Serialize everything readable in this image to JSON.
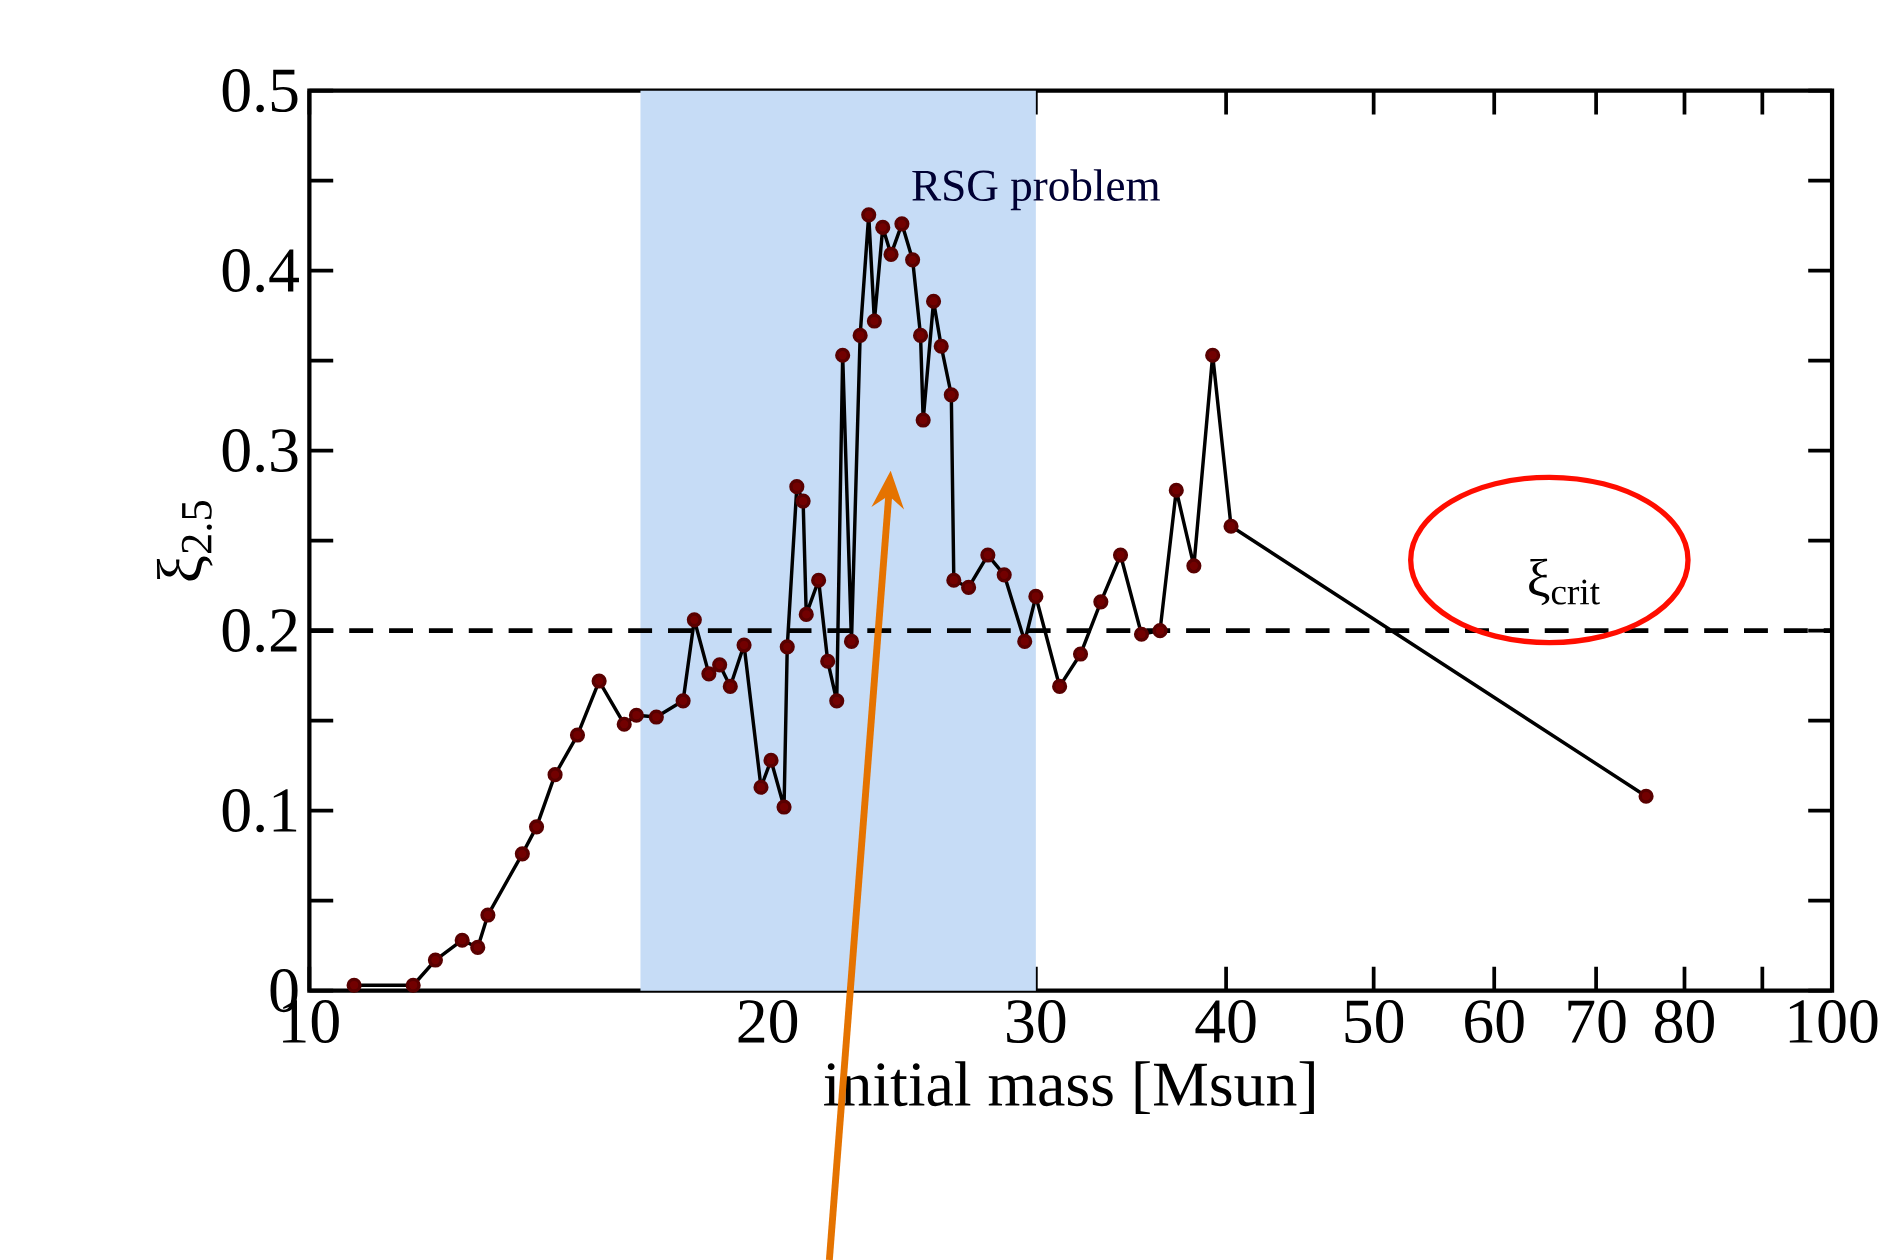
{
  "chart_data": {
    "type": "line",
    "xlabel": "initial mass [Msun]",
    "ylabel": "ξ$_{2.5}$",
    "log": "x",
    "marker": "circle",
    "line_style": "solid",
    "xlim": [
      10,
      100
    ],
    "ylim": [
      0,
      0.5
    ],
    "xticks": [
      10,
      20,
      30,
      40,
      50,
      60,
      70,
      80,
      {
        "value": 90,
        "label": null
      },
      100
    ],
    "yticks": [
      0,
      {
        "value": 0.05,
        "label": null
      },
      0.1,
      {
        "value": 0.15,
        "label": null
      },
      0.2,
      {
        "value": 0.25,
        "label": null
      },
      0.3,
      {
        "value": 0.35,
        "label": null
      },
      0.4,
      {
        "value": 0.45,
        "label": null
      },
      0.5
    ],
    "series": [
      {
        "color": "#000000",
        "x": [
          10.7,
          11.7,
          12.1,
          12.6,
          12.9,
          13.1,
          13.8,
          14.1,
          14.5,
          15.0,
          15.5,
          16.1,
          16.4,
          16.9,
          17.6,
          17.9,
          18.3,
          18.6,
          18.9,
          19.3,
          19.8,
          20.1,
          20.5,
          20.6,
          20.9,
          21.1,
          21.2,
          21.6,
          21.9,
          22.2,
          22.4,
          22.7,
          23.0,
          23.3,
          23.5,
          23.8,
          24.1,
          24.5,
          24.9,
          25.2,
          25.3,
          25.7,
          26.0,
          26.4,
          26.5,
          27.1,
          27.9,
          28.6,
          29.5,
          30.0,
          31.1,
          32.1,
          33.1,
          34.1,
          35.2,
          36.2,
          37.1,
          38.1,
          39.2,
          40.3,
          75.5
        ],
        "values": [
          0.003,
          0.003,
          0.017,
          0.028,
          0.024,
          0.042,
          0.076,
          0.091,
          0.12,
          0.142,
          0.172,
          0.148,
          0.153,
          0.152,
          0.161,
          0.206,
          0.176,
          0.181,
          0.169,
          0.192,
          0.113,
          0.128,
          0.102,
          0.191,
          0.28,
          0.272,
          0.209,
          0.228,
          0.183,
          0.161,
          0.353,
          0.194,
          0.364,
          0.431,
          0.372,
          0.424,
          0.409,
          0.426,
          0.406,
          0.364,
          0.317,
          0.383,
          0.358,
          0.331,
          0.228,
          0.224,
          0.242,
          0.231,
          0.194,
          0.219,
          0.169,
          0.187,
          0.216,
          0.242,
          0.198,
          0.2,
          0.278,
          0.236,
          0.353,
          0.258,
          0.108
        ]
      }
    ],
    "bands": [
      {
        "axis": "x",
        "from": 16.5,
        "to": 30,
        "color": "#c6dcf6"
      }
    ],
    "ref_lines": [
      {
        "axis": "y",
        "value": 0.2,
        "label": "ξ$_{crit}$",
        "line_style": "dashed"
      }
    ],
    "annotations": [
      {
        "text": "RSG problem",
        "x": 30,
        "y": 0.445
      }
    ]
  }
}
